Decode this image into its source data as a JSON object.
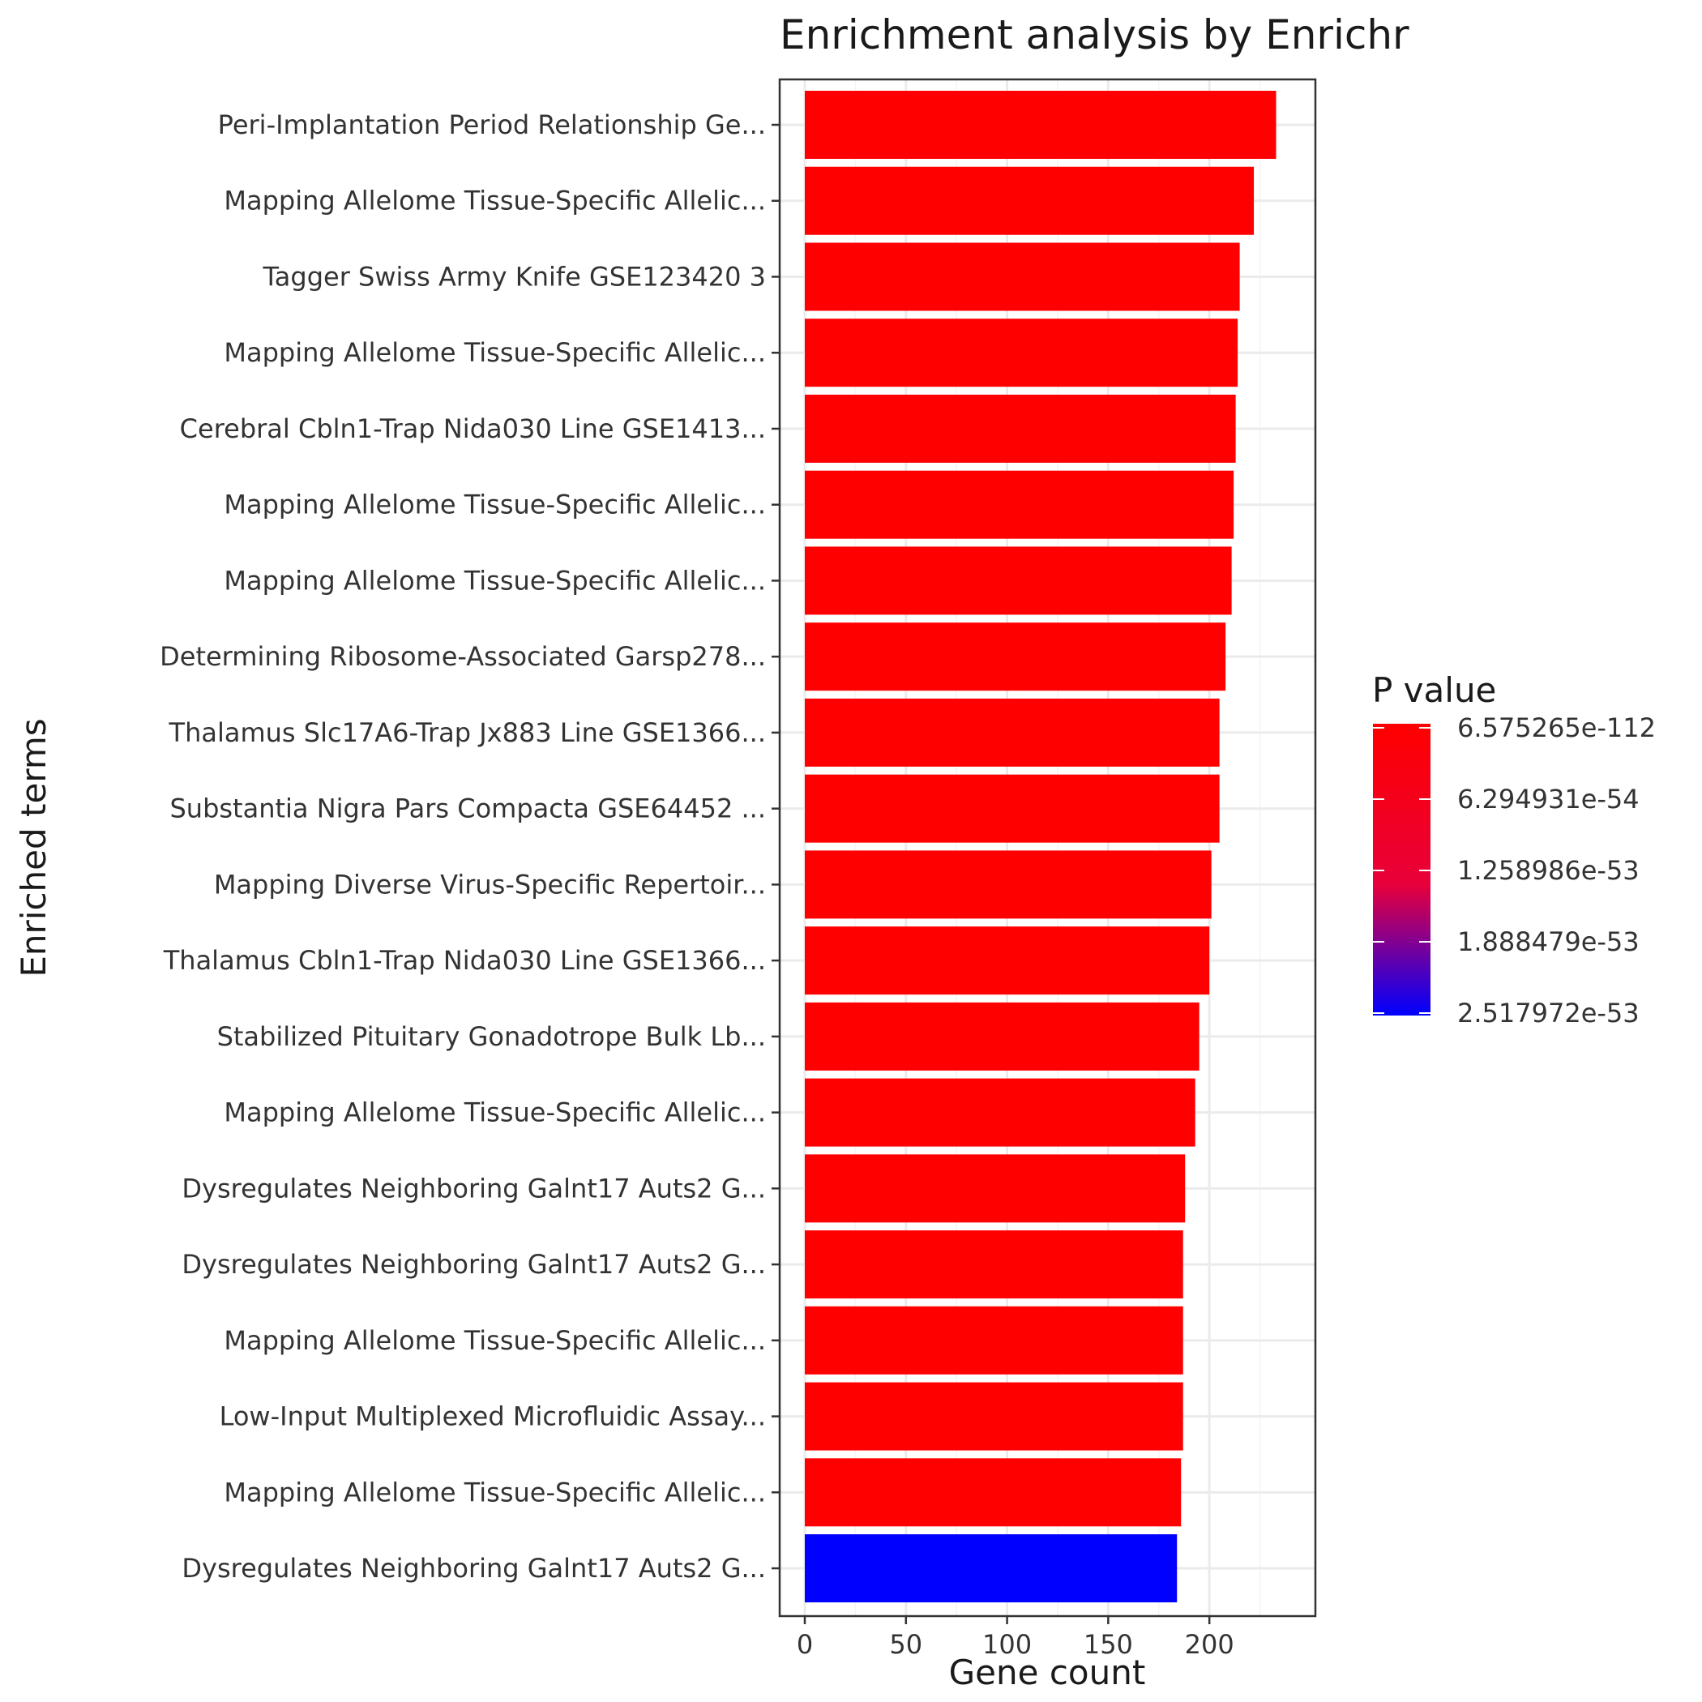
{
  "chart_data": {
    "type": "bar",
    "orientation": "horizontal",
    "title": "Enrichment analysis by Enrichr",
    "xlabel": "Gene count",
    "ylabel": "Enriched terms",
    "xlim": [
      0,
      240
    ],
    "x_ticks": [
      0,
      50,
      100,
      150,
      200
    ],
    "grid": true,
    "legend_position": "right",
    "categories": [
      "Peri-Implantation Period Relationship Ge...",
      "Mapping Allelome Tissue-Specific Allelic...",
      "Tagger Swiss Army Knife GSE123420 3",
      "Mapping Allelome Tissue-Specific Allelic...",
      "Cerebral Cbln1-Trap Nida030 Line GSE1413...",
      "Mapping Allelome Tissue-Specific Allelic...",
      "Mapping Allelome Tissue-Specific Allelic...",
      "Determining Ribosome-Associated Garsp278...",
      "Thalamus Slc17A6-Trap Jx883 Line GSE1366...",
      "Substantia Nigra Pars Compacta GSE64452 ...",
      "Mapping Diverse Virus-Specific Repertoir...",
      "Thalamus Cbln1-Trap Nida030 Line GSE1366...",
      "Stabilized Pituitary Gonadotrope Bulk Lb...",
      "Mapping Allelome Tissue-Specific Allelic...",
      "Dysregulates Neighboring Galnt17 Auts2 G...",
      "Dysregulates Neighboring Galnt17 Auts2 G...",
      "Mapping Allelome Tissue-Specific Allelic...",
      "Low-Input Multiplexed Microfluidic Assay...",
      "Mapping Allelome Tissue-Specific Allelic...",
      "Dysregulates Neighboring Galnt17 Auts2 G..."
    ],
    "values": [
      233,
      222,
      215,
      214,
      213,
      212,
      211,
      208,
      205,
      205,
      201,
      200,
      195,
      193,
      188,
      187,
      187,
      187,
      186,
      184
    ],
    "bar_colors": [
      "#FF0000",
      "#FF0000",
      "#FF0000",
      "#FF0000",
      "#FF0000",
      "#FF0000",
      "#FF0000",
      "#FF0000",
      "#FF0000",
      "#FF0000",
      "#FF0000",
      "#FF0000",
      "#FF0000",
      "#FF0000",
      "#FF0000",
      "#FF0000",
      "#FF0000",
      "#FF0000",
      "#FF0000",
      "#0000FF"
    ],
    "legend": {
      "title": "P value",
      "labels": [
        "6.575265e-112",
        "6.294931e-54",
        "1.258986e-53",
        "1.888479e-53",
        "2.517972e-53"
      ],
      "color_low": "#FF0000",
      "color_high": "#0000FF"
    }
  }
}
